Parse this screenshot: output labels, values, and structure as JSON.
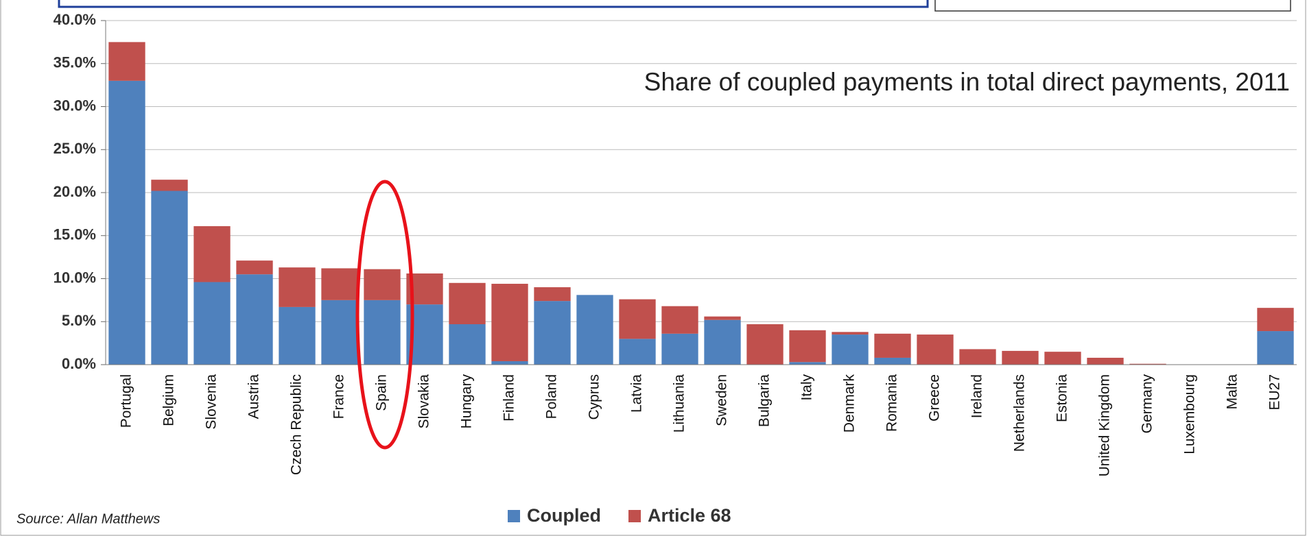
{
  "chart_data": {
    "type": "stacked_bar",
    "title": "Share of coupled payments in total direct payments, 2011",
    "source": "Source: Allan Matthews",
    "categories": [
      "Portugal",
      "Belgium",
      "Slovenia",
      "Austria",
      "Czech Republic",
      "France",
      "Spain",
      "Slovakia",
      "Hungary",
      "Finland",
      "Poland",
      "Cyprus",
      "Latvia",
      "Lithuania",
      "Sweden",
      "Bulgaria",
      "Italy",
      "Denmark",
      "Romania",
      "Greece",
      "Ireland",
      "Netherlands",
      "Estonia",
      "United Kingdom",
      "Germany",
      "Luxembourg",
      "Malta",
      "EU27"
    ],
    "series": [
      {
        "name": "Coupled",
        "color": "#4f81bd",
        "values": [
          33.0,
          20.2,
          9.6,
          10.5,
          6.7,
          7.5,
          7.5,
          7.0,
          4.7,
          0.4,
          7.4,
          8.1,
          3.0,
          3.6,
          5.2,
          0,
          0.3,
          3.5,
          0.8,
          0,
          0,
          0,
          0,
          0,
          0,
          0,
          0,
          3.9
        ]
      },
      {
        "name": "Article 68",
        "color": "#c0504d",
        "values": [
          4.5,
          1.3,
          6.5,
          1.6,
          4.6,
          3.7,
          3.6,
          3.6,
          4.8,
          9.0,
          1.6,
          0,
          4.6,
          3.2,
          0.4,
          4.7,
          3.7,
          0.3,
          2.8,
          3.5,
          1.8,
          1.6,
          1.5,
          0.8,
          0.1,
          0,
          0,
          2.7
        ]
      }
    ],
    "ylim": [
      0,
      40
    ],
    "yticks": [
      {
        "value": 0,
        "label": "0.0%"
      },
      {
        "value": 5,
        "label": "5.0%"
      },
      {
        "value": 10,
        "label": "10.0%"
      },
      {
        "value": 15,
        "label": "15.0%"
      },
      {
        "value": 20,
        "label": "20.0%"
      },
      {
        "value": 25,
        "label": "25.0%"
      },
      {
        "value": 30,
        "label": "30.0%"
      },
      {
        "value": 35,
        "label": "35.0%"
      },
      {
        "value": 40,
        "label": "40.0%"
      }
    ],
    "grid": true
  }
}
